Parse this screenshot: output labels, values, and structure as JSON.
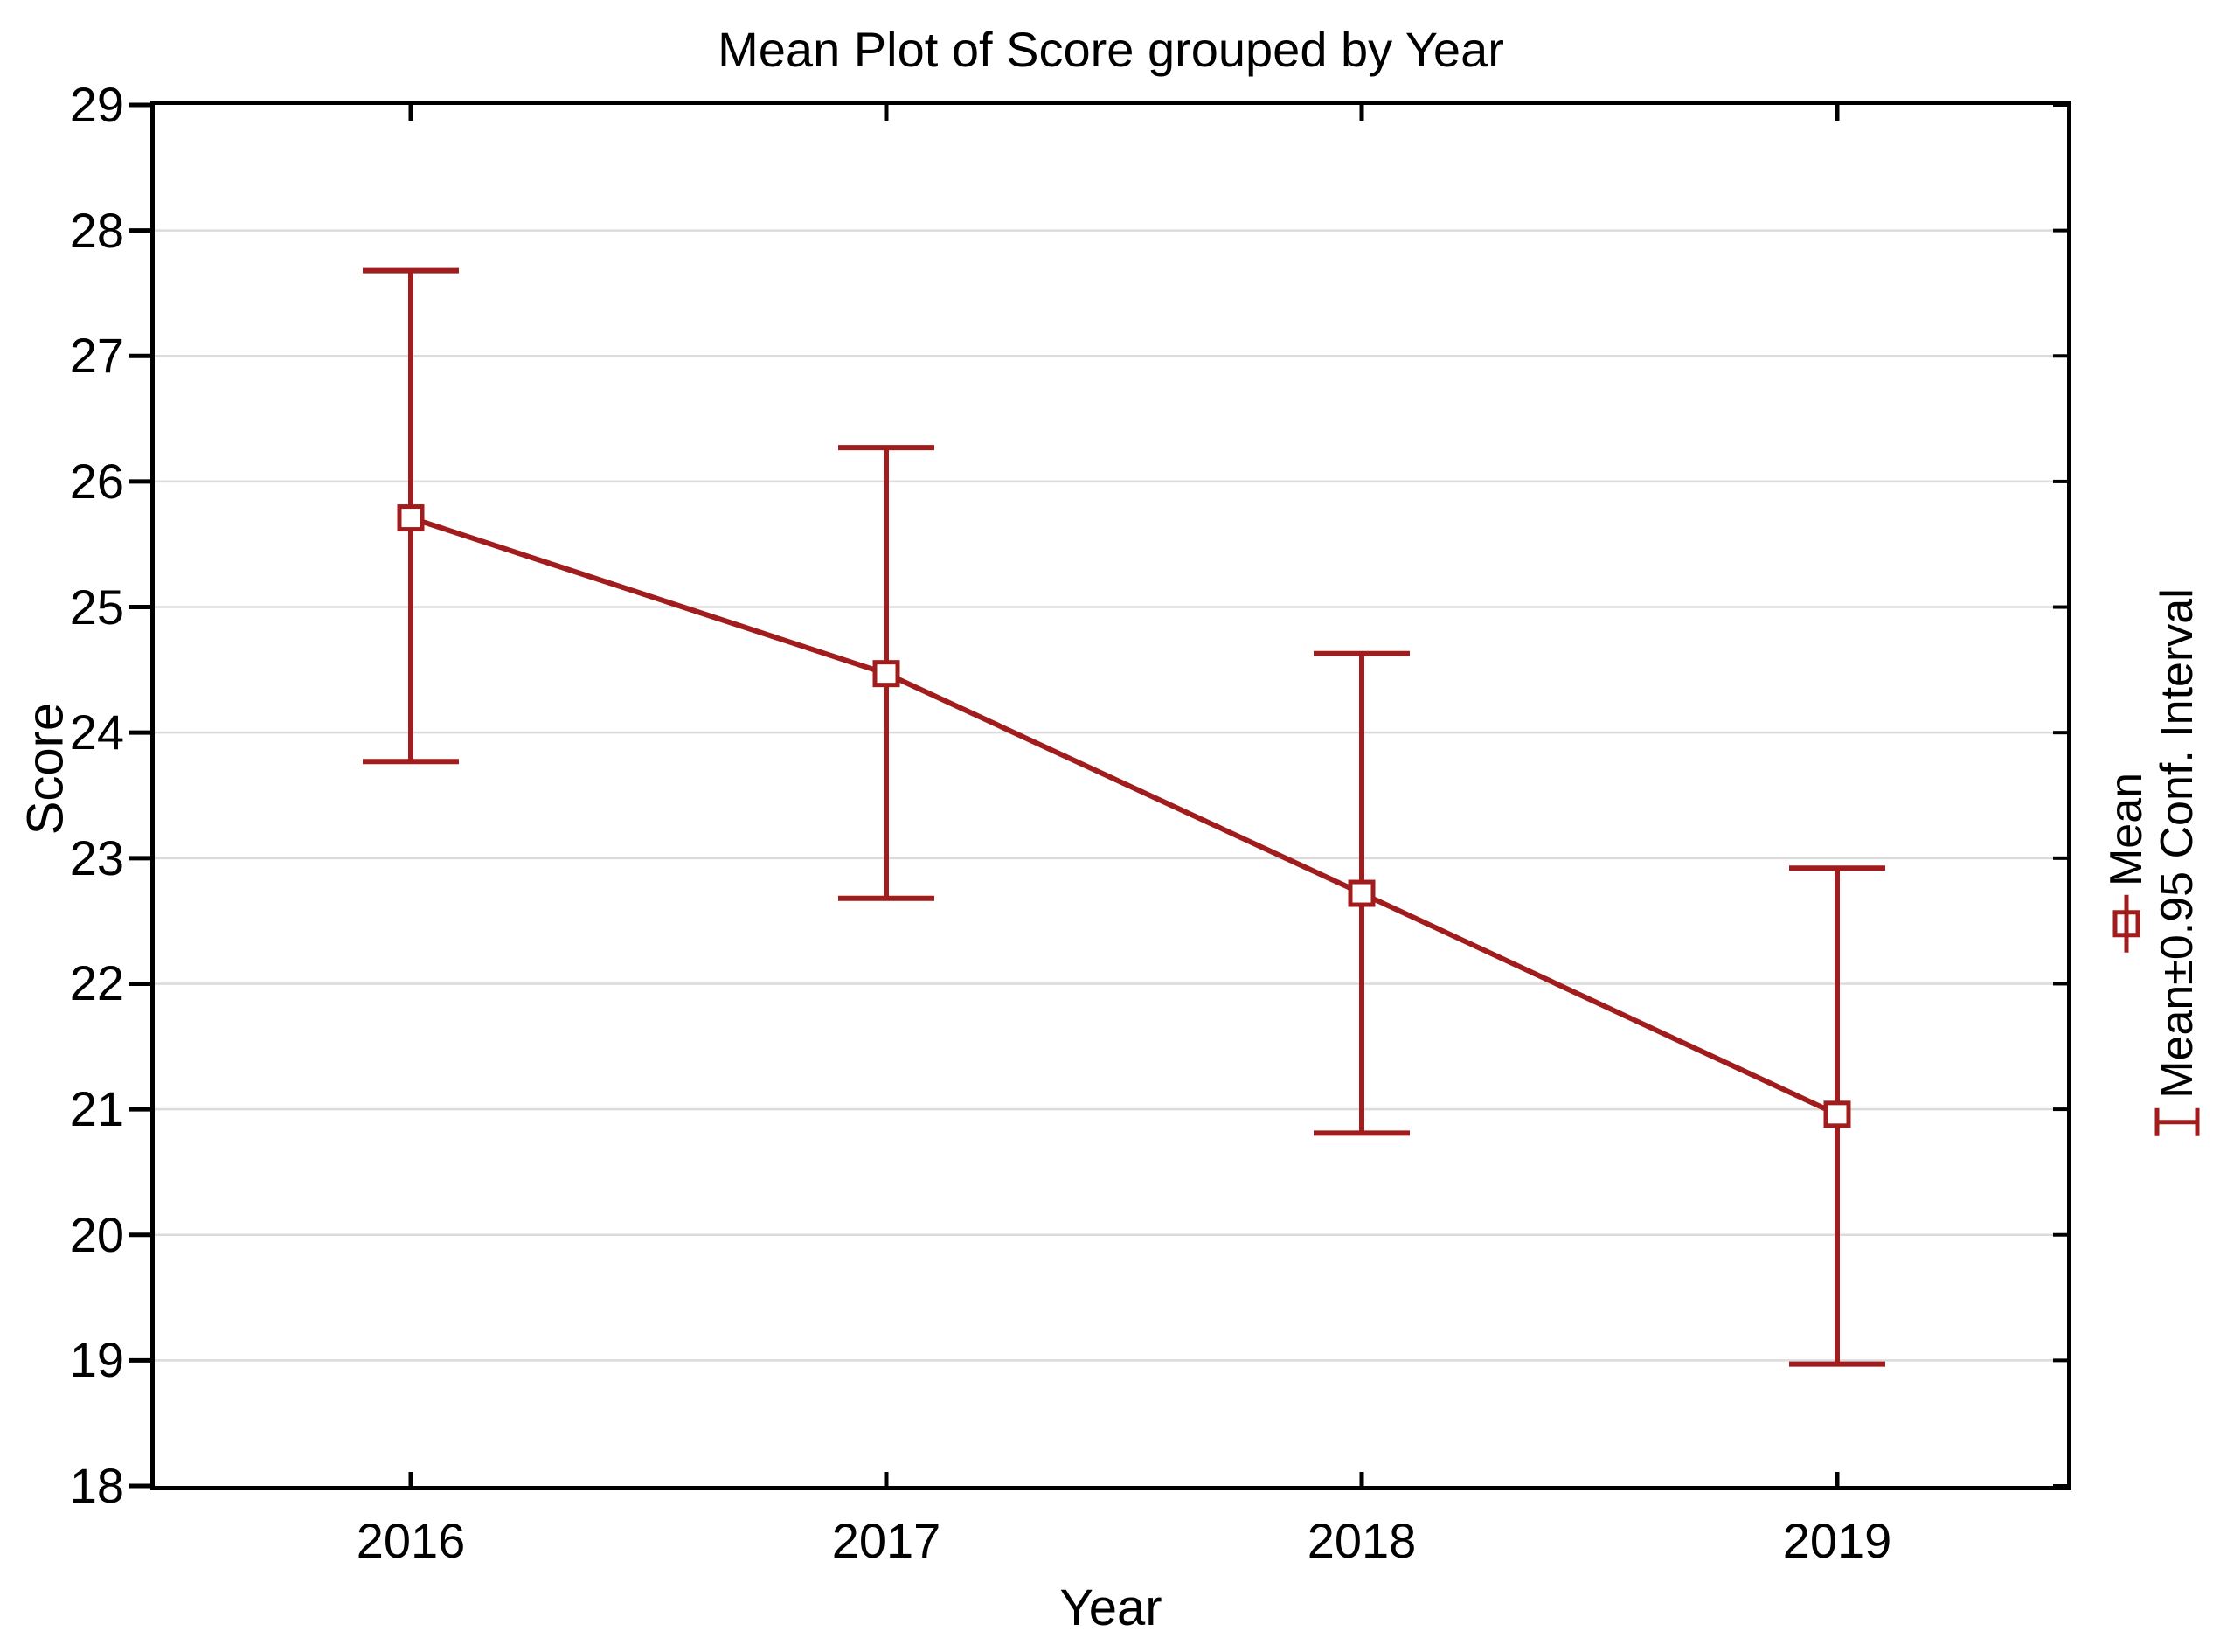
{
  "title": "Mean Plot of Score grouped by Year",
  "axes": {
    "x_label": "Year",
    "y_label": "Score"
  },
  "legend": {
    "mean_label": "Mean",
    "ci_label": "Mean±0.95 Conf. Interval",
    "position": "right-rotated-90"
  },
  "colors": {
    "series": "#A11C1C",
    "grid": "#DBDBDB",
    "axis": "#000000",
    "marker_fill": "#FFFFFF",
    "background": "#FFFFFF"
  },
  "chart_data": {
    "type": "line",
    "title": "Mean Plot of Score grouped by Year",
    "xlabel": "Year",
    "ylabel": "Score",
    "categories": [
      "2016",
      "2017",
      "2018",
      "2019"
    ],
    "series": [
      {
        "name": "Mean",
        "values": [
          25.71,
          24.47,
          22.72,
          20.96
        ]
      },
      {
        "name": "CI lower",
        "values": [
          23.77,
          22.68,
          20.81,
          18.97
        ]
      },
      {
        "name": "CI upper",
        "values": [
          27.68,
          26.27,
          24.63,
          22.92
        ]
      }
    ],
    "ylim": [
      18,
      29
    ],
    "yticks": [
      18,
      19,
      20,
      21,
      22,
      23,
      24,
      25,
      26,
      27,
      28,
      29
    ],
    "grid": "horizontal",
    "marker": "open-square",
    "legend_entries": [
      "Mean",
      "Mean±0.95 Conf. Interval"
    ],
    "legend_position": "right"
  }
}
